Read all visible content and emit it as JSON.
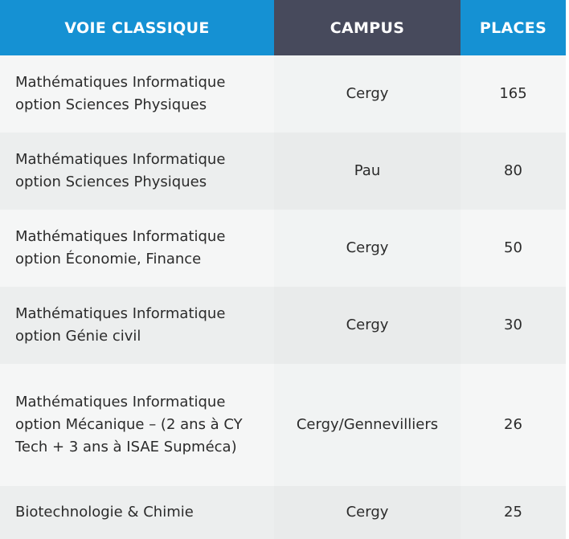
{
  "table": {
    "headers": {
      "program": "VOIE CLASSIQUE",
      "campus": "CAMPUS",
      "places": "PLACES"
    },
    "rows": [
      {
        "program": "Mathématiques Informatique option Sciences Physiques",
        "campus": "Cergy",
        "places": "165"
      },
      {
        "program": "Mathématiques Informatique option Sciences Physiques",
        "campus": "Pau",
        "places": "80"
      },
      {
        "program": "Mathématiques Informatique option Économie, Finance",
        "campus": "Cergy",
        "places": "50"
      },
      {
        "program": "Mathématiques Informatique option Génie civil",
        "campus": "Cergy",
        "places": "30"
      },
      {
        "program": "Mathématiques Informatique option Mécanique – (2 ans à CY Tech + 3 ans à ISAE Supméca)",
        "campus": "Cergy/Gennevilliers",
        "places": "26"
      },
      {
        "program": "Biotechnologie & Chimie",
        "campus": "Cergy",
        "places": "25"
      }
    ]
  },
  "colors": {
    "header_blue": "#1591d3",
    "header_dark": "#474a5c",
    "row_light": "#f5f6f6",
    "row_alt": "#eceeee",
    "text": "#2b2b2b"
  }
}
